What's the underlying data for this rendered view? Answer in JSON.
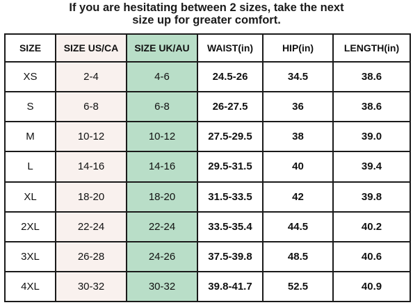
{
  "header": {
    "line1": "If you are hesitating between 2 sizes, take the next",
    "line2": "size up for greater comfort."
  },
  "table": {
    "headers": [
      "SIZE",
      "SIZE US/CA",
      "SIZE UK/AU",
      "WAIST(in)",
      "HIP(in)",
      "LENGTH(in)"
    ],
    "rows": [
      [
        "XS",
        "2-4",
        "4-6",
        "24.5-26",
        "34.5",
        "38.6"
      ],
      [
        "S",
        "6-8",
        "6-8",
        "26-27.5",
        "36",
        "38.6"
      ],
      [
        "M",
        "10-12",
        "10-12",
        "27.5-29.5",
        "38",
        "39.0"
      ],
      [
        "L",
        "14-16",
        "14-16",
        "29.5-31.5",
        "40",
        "39.4"
      ],
      [
        "XL",
        "18-20",
        "18-20",
        "31.5-33.5",
        "42",
        "39.8"
      ],
      [
        "2XL",
        "22-24",
        "22-24",
        "33.5-35.4",
        "44.5",
        "40.2"
      ],
      [
        "3XL",
        "26-28",
        "24-26",
        "37.5-39.8",
        "48.5",
        "40.6"
      ],
      [
        "4XL",
        "30-32",
        "30-32",
        "39.8-41.7",
        "52.5",
        "40.9"
      ]
    ]
  },
  "colors": {
    "us_column_bg": "#f9f1ee",
    "uk_column_bg": "#b9dec8",
    "border": "#1a1a1a"
  }
}
